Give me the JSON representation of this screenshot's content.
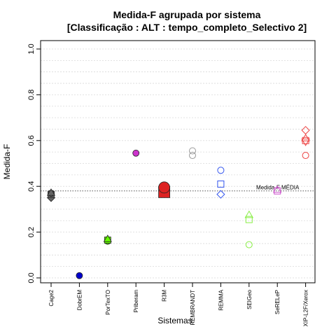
{
  "chart_data": {
    "type": "scatter",
    "title": "Medida-F agrupada por sistema",
    "subtitle": "[Classificação : ALT : tempo_completo_Selectivo 2]",
    "xlabel": "Sistemas",
    "ylabel": "Medida-F",
    "ylim": [
      0,
      1
    ],
    "yticks": [
      "0.0",
      "0.2",
      "0.4",
      "0.6",
      "0.8",
      "1.0"
    ],
    "minor_gridlines": true,
    "reference_line": {
      "value": 0.38,
      "label": "Medida-F MÉDIA",
      "style": "dotted"
    },
    "categories": [
      "Cage2",
      "DobrEM",
      "PorTexTO",
      "Priberam",
      "R3M",
      "REMBRANDT",
      "REMMA",
      "SEIGeo",
      "SeRELeP",
      "XIP-L2F/Xerox"
    ],
    "series": [
      {
        "category": "Cage2",
        "color": "#666666",
        "points": [
          {
            "y": 0.35,
            "marker": "diamond",
            "filled": true
          },
          {
            "y": 0.365,
            "marker": "square",
            "filled": true
          },
          {
            "y": 0.37,
            "marker": "circle",
            "filled": true
          },
          {
            "y": 0.372,
            "marker": "triangle",
            "filled": true
          }
        ]
      },
      {
        "category": "DobrEM",
        "color": "#0000cc",
        "points": [
          {
            "y": 0.01,
            "marker": "circle",
            "filled": true
          }
        ]
      },
      {
        "category": "PorTexTO",
        "color": "#66ff00",
        "points": [
          {
            "y": 0.16,
            "marker": "circle",
            "filled": true
          },
          {
            "y": 0.165,
            "marker": "square",
            "filled": true
          },
          {
            "y": 0.17,
            "marker": "triangle",
            "filled": true
          }
        ]
      },
      {
        "category": "Priberam",
        "color": "#cc33cc",
        "points": [
          {
            "y": 0.545,
            "marker": "circle",
            "filled": true
          }
        ]
      },
      {
        "category": "R3M",
        "color": "#dd2222",
        "points": [
          {
            "y": 0.375,
            "marker": "square",
            "filled": true,
            "large": true
          },
          {
            "y": 0.395,
            "marker": "circle",
            "filled": true,
            "large": true
          }
        ]
      },
      {
        "category": "REMBRANDT",
        "color": "#999999",
        "points": [
          {
            "y": 0.535,
            "marker": "circle",
            "filled": false
          },
          {
            "y": 0.555,
            "marker": "circle",
            "filled": false
          }
        ]
      },
      {
        "category": "REMMA",
        "color": "#3355ee",
        "points": [
          {
            "y": 0.47,
            "marker": "circle",
            "filled": false
          },
          {
            "y": 0.41,
            "marker": "square",
            "filled": false
          },
          {
            "y": 0.365,
            "marker": "diamond",
            "filled": false
          }
        ]
      },
      {
        "category": "SEIGeo",
        "color": "#88ee44",
        "points": [
          {
            "y": 0.275,
            "marker": "triangle",
            "filled": false
          },
          {
            "y": 0.255,
            "marker": "square",
            "filled": false
          },
          {
            "y": 0.145,
            "marker": "circle",
            "filled": false
          }
        ]
      },
      {
        "category": "SeRELeP",
        "color": "#cc55cc",
        "points": [
          {
            "y": 0.385,
            "marker": "triangle",
            "filled": false
          },
          {
            "y": 0.38,
            "marker": "square",
            "filled": false
          }
        ]
      },
      {
        "category": "XIP-L2F/Xerox",
        "color": "#ee4444",
        "points": [
          {
            "y": 0.645,
            "marker": "diamond",
            "filled": false
          },
          {
            "y": 0.61,
            "marker": "triangle",
            "filled": false
          },
          {
            "y": 0.6,
            "marker": "square",
            "filled": false
          },
          {
            "y": 0.595,
            "marker": "triangle-down",
            "filled": false
          },
          {
            "y": 0.535,
            "marker": "circle",
            "filled": false
          }
        ]
      }
    ]
  }
}
